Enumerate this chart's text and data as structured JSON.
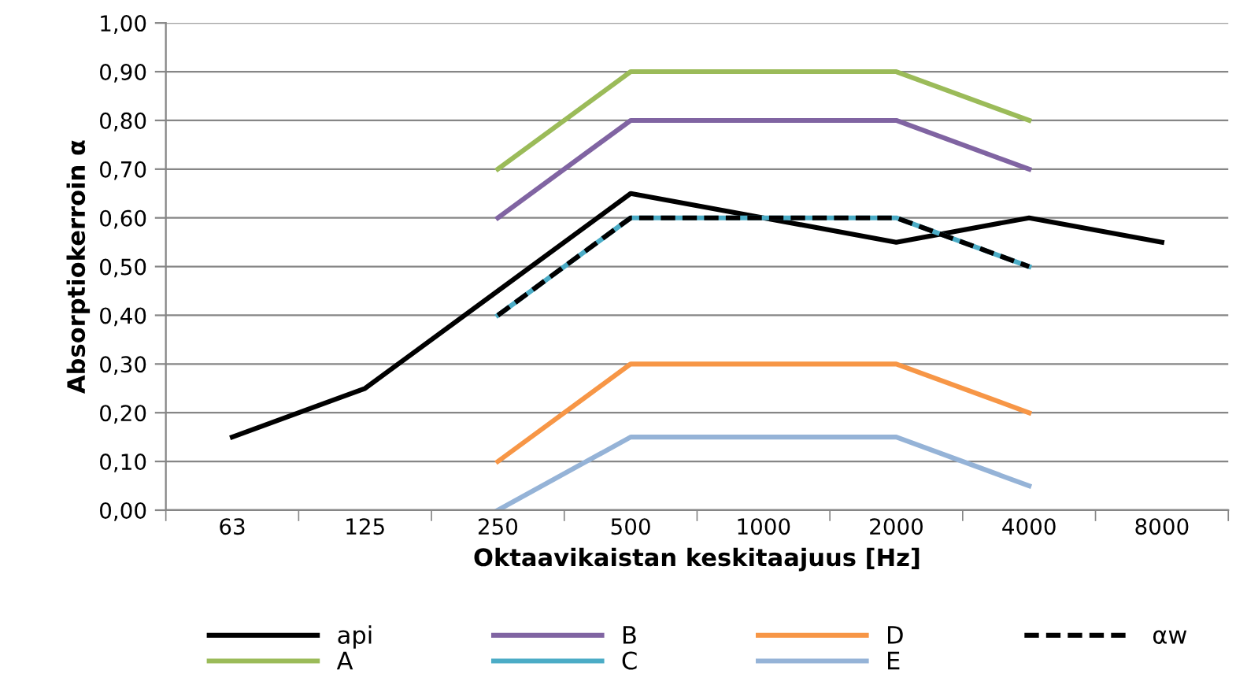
{
  "chart_data": {
    "type": "line",
    "xlabel": "Oktaavikaistan keskitaajuus [Hz]",
    "ylabel": "Absorptiokerroin α",
    "categories": [
      "63",
      "125",
      "250",
      "500",
      "1000",
      "2000",
      "4000",
      "8000"
    ],
    "series": [
      {
        "name": "api",
        "color": "#000000",
        "line_style": "solid",
        "values": [
          0.15,
          0.25,
          0.45,
          0.65,
          0.6,
          0.55,
          0.6,
          0.55
        ]
      },
      {
        "name": "A",
        "color": "#9bbb59",
        "line_style": "solid",
        "values": [
          null,
          null,
          0.7,
          0.9,
          0.9,
          0.9,
          0.8,
          null
        ]
      },
      {
        "name": "B",
        "color": "#8064a2",
        "line_style": "solid",
        "values": [
          null,
          null,
          0.6,
          0.8,
          0.8,
          0.8,
          0.7,
          null
        ]
      },
      {
        "name": "C",
        "color": "#4bacc6",
        "line_style": "solid",
        "values": [
          null,
          null,
          0.4,
          0.6,
          0.6,
          0.6,
          0.5,
          null
        ]
      },
      {
        "name": "D",
        "color": "#f79646",
        "line_style": "solid",
        "values": [
          null,
          null,
          0.1,
          0.3,
          0.3,
          0.3,
          0.2,
          null
        ]
      },
      {
        "name": "E",
        "color": "#95b3d7",
        "line_style": "solid",
        "values": [
          null,
          null,
          0.0,
          0.15,
          0.15,
          0.15,
          0.05,
          null
        ]
      },
      {
        "name": "αw",
        "color": "#000000",
        "line_style": "dashed",
        "values": [
          null,
          null,
          0.4,
          0.6,
          0.6,
          0.6,
          0.5,
          null
        ]
      }
    ],
    "ylim": [
      0,
      1
    ],
    "yticks": [
      {
        "value": 0,
        "label": "0,00"
      },
      {
        "value": 0.1,
        "label": "0,10"
      },
      {
        "value": 0.2,
        "label": "0,20"
      },
      {
        "value": 0.3,
        "label": "0,30"
      },
      {
        "value": 0.4,
        "label": "0,40"
      },
      {
        "value": 0.5,
        "label": "0,50"
      },
      {
        "value": 0.6,
        "label": "0,60"
      },
      {
        "value": 0.7,
        "label": "0,70"
      },
      {
        "value": 0.8,
        "label": "0,80"
      },
      {
        "value": 0.9,
        "label": "0,90"
      },
      {
        "value": 1,
        "label": "1,00"
      }
    ],
    "grid": "y",
    "legend": "bottom",
    "marker": "none"
  }
}
